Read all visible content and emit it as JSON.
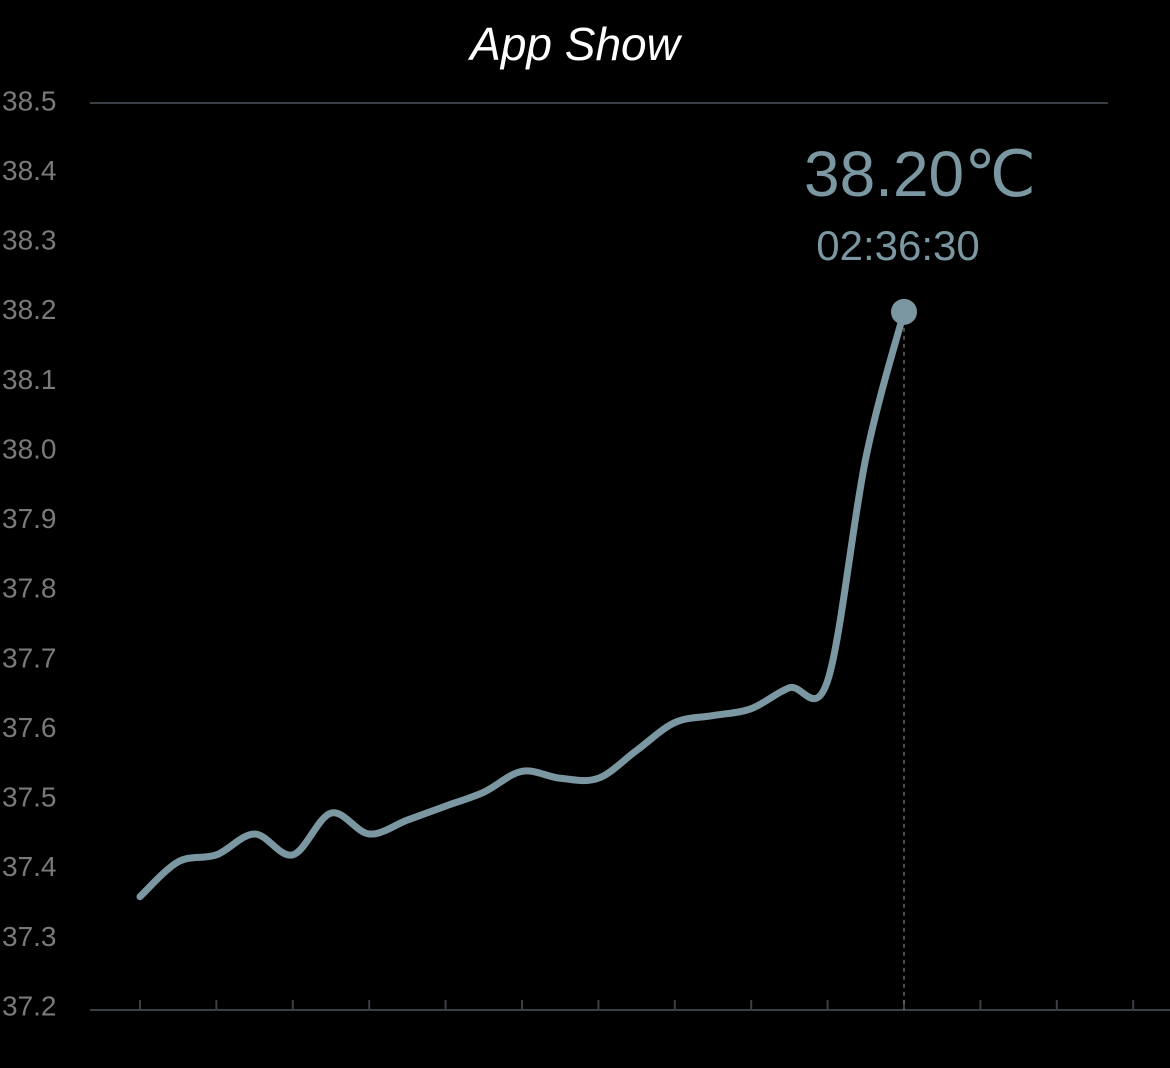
{
  "chart_data": {
    "type": "line",
    "title": "App Show",
    "categories": [
      null,
      null,
      null,
      null,
      null,
      null,
      null,
      null,
      null,
      null,
      null,
      null,
      null,
      null,
      null,
      null,
      null,
      null,
      null,
      null,
      null,
      null,
      null,
      null,
      null,
      null,
      null
    ],
    "values": [
      37.36,
      37.41,
      37.42,
      37.45,
      37.42,
      37.48,
      37.45,
      37.47,
      37.49,
      37.51,
      37.54,
      37.53,
      37.53,
      37.57,
      37.61,
      37.62,
      37.63,
      37.66,
      37.67,
      37.99,
      38.2,
      null,
      null,
      null,
      null,
      null,
      null
    ],
    "value_labels": [
      null,
      null,
      null,
      null,
      null,
      null,
      null,
      null,
      null,
      null,
      null,
      null,
      null,
      null,
      null,
      null,
      null,
      null,
      null,
      null,
      "38.20℃",
      null,
      null,
      null,
      null,
      null,
      null
    ],
    "annotation": "02:36:30",
    "color": "#7b97a2",
    "ylim": [
      37.2,
      38.5
    ],
    "yticks": [
      37.2,
      37.3,
      37.4,
      37.5,
      37.6,
      37.7,
      37.8,
      37.9,
      {
        "value": 38,
        "label": "38.0"
      },
      38.1,
      38.2,
      38.3,
      38.4,
      38.5
    ],
    "grid": false
  }
}
